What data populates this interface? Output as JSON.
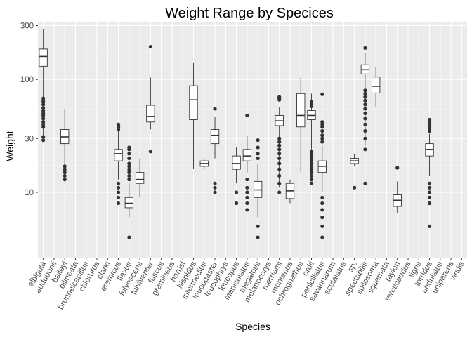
{
  "chart_data": {
    "type": "boxplot",
    "title": "Weight Range by Specices",
    "xlabel": "Species",
    "ylabel": "Weight",
    "y_scale": "log10",
    "ylim": [
      2.6,
      320
    ],
    "y_ticks": [
      10,
      30,
      100,
      300
    ],
    "grid": true,
    "legend": "none",
    "categories": [
      "albigula",
      "audubonii",
      "baileyi",
      "bilineata",
      "brunneicapillus",
      "chlorurus",
      "clarki",
      "eremicus",
      "flavus",
      "fulvescens",
      "fulviventer",
      "fuscus",
      "gramineus",
      "harrisi",
      "hispidus",
      "intermedius",
      "leucogaster",
      "leucophrys",
      "leucopus",
      "maniculatus",
      "megalotis",
      "melanocorys",
      "merriami",
      "montanus",
      "ochrognathus",
      "ordii",
      "penicillatus",
      "savannarum",
      "scutalatus",
      "sp.",
      "spectabilis",
      "spilosoma",
      "squamata",
      "taylori",
      "tereticaudus",
      "tigris",
      "torridus",
      "undulatus",
      "uniparens",
      "viridis"
    ],
    "boxes": [
      {
        "species": "albigula",
        "min": 31,
        "q1": 131,
        "median": 160,
        "q3": 186,
        "max": 280,
        "outliers": [
          29,
          31,
          38,
          40,
          42,
          45,
          48,
          50,
          53,
          56,
          60,
          64,
          68
        ]
      },
      {
        "species": "baileyi",
        "min": 14,
        "q1": 27,
        "median": 31,
        "q3": 36,
        "max": 55,
        "outliers": [
          13,
          14,
          15,
          16,
          17
        ]
      },
      {
        "species": "eremicus",
        "min": 13,
        "q1": 19,
        "median": 22,
        "q3": 24,
        "max": 35,
        "outliers": [
          8,
          9,
          10,
          11,
          12,
          36,
          38,
          39,
          40
        ]
      },
      {
        "species": "flavus",
        "min": 6,
        "q1": 7.3,
        "median": 8,
        "q3": 9,
        "max": 12,
        "outliers": [
          4,
          13,
          14,
          15,
          16,
          17,
          18,
          20,
          22,
          24,
          25
        ]
      },
      {
        "species": "fulvescens",
        "min": 9,
        "q1": 12,
        "median": 13,
        "q3": 15,
        "max": 20,
        "outliers": []
      },
      {
        "species": "fulviventer",
        "min": 36,
        "q1": 42,
        "median": 47,
        "q3": 59,
        "max": 104,
        "outliers": [
          23,
          195
        ]
      },
      {
        "species": "hispidus",
        "min": 16,
        "q1": 44,
        "median": 66,
        "q3": 88,
        "max": 140,
        "outliers": []
      },
      {
        "species": "intermedius",
        "min": 16,
        "q1": 17,
        "median": 18,
        "q3": 19,
        "max": 20,
        "outliers": []
      },
      {
        "species": "leucogaster",
        "min": 20,
        "q1": 27,
        "median": 32,
        "q3": 36,
        "max": 47,
        "outliers": [
          10,
          11,
          12,
          55
        ]
      },
      {
        "species": "leucopus",
        "min": 12,
        "q1": 16,
        "median": 18,
        "q3": 21,
        "max": 25,
        "outliers": [
          8,
          10
        ]
      },
      {
        "species": "maniculatus",
        "min": 15,
        "q1": 19,
        "median": 21,
        "q3": 24,
        "max": 32,
        "outliers": [
          7,
          8,
          9,
          10,
          11,
          13,
          48
        ]
      },
      {
        "species": "megalotis",
        "min": 6,
        "q1": 9,
        "median": 10.5,
        "q3": 12.5,
        "max": 18,
        "outliers": [
          4,
          5,
          20,
          22,
          25,
          29
        ]
      },
      {
        "species": "merriami",
        "min": 11,
        "q1": 39,
        "median": 43,
        "q3": 48,
        "max": 57,
        "outliers": [
          10,
          12,
          14,
          16,
          18,
          20,
          22,
          24,
          26,
          28,
          30,
          66,
          68,
          70
        ]
      },
      {
        "species": "montanus",
        "min": 8,
        "q1": 8.8,
        "median": 10.3,
        "q3": 12,
        "max": 13,
        "outliers": []
      },
      {
        "species": "ochrognathus",
        "min": 15,
        "q1": 38,
        "median": 48,
        "q3": 75,
        "max": 105,
        "outliers": []
      },
      {
        "species": "ordii",
        "min": 24,
        "q1": 44,
        "median": 48,
        "q3": 53,
        "max": 75,
        "outliers": [
          12,
          13,
          14,
          15,
          16,
          17,
          18,
          19,
          20,
          21,
          22,
          23,
          58,
          60,
          64
        ]
      },
      {
        "species": "penicillatus",
        "min": 10,
        "q1": 15,
        "median": 17,
        "q3": 19,
        "max": 26,
        "outliers": [
          4,
          5,
          6,
          7,
          8,
          9,
          28,
          30,
          32,
          35,
          38,
          40,
          42,
          74
        ]
      },
      {
        "species": "sp.",
        "min": 17,
        "q1": 18,
        "median": 19,
        "q3": 20,
        "max": 22,
        "outliers": [
          11
        ]
      },
      {
        "species": "spectabilis",
        "min": 26,
        "q1": 112,
        "median": 122,
        "q3": 135,
        "max": 172,
        "outliers": [
          12,
          24,
          30,
          35,
          40,
          45,
          50,
          55,
          60,
          65,
          70,
          75,
          80,
          190
        ]
      },
      {
        "species": "spilosoma",
        "min": 57,
        "q1": 76,
        "median": 87,
        "q3": 105,
        "max": 130,
        "outliers": []
      },
      {
        "species": "taylori",
        "min": 6.5,
        "q1": 7.5,
        "median": 8.5,
        "q3": 9.5,
        "max": 12.5,
        "outliers": [
          16.5
        ]
      },
      {
        "species": "torridus",
        "min": 14,
        "q1": 21,
        "median": 24,
        "q3": 27,
        "max": 33,
        "outliers": [
          5,
          8,
          9,
          10,
          11,
          12,
          35,
          37,
          38,
          40,
          42,
          44
        ]
      }
    ]
  }
}
